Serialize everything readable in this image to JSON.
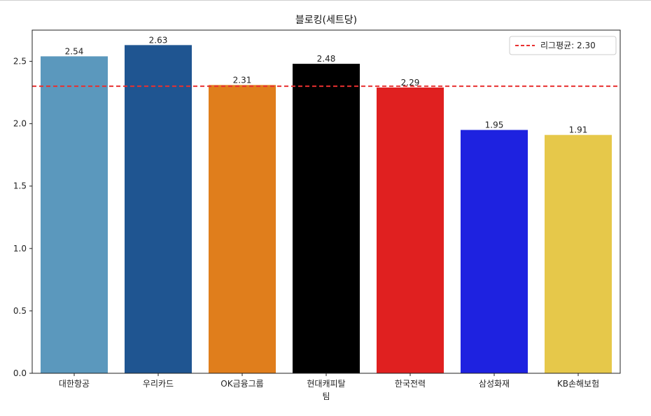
{
  "chart_data": {
    "type": "bar",
    "title": "블로킹(세트당)",
    "xlabel": "",
    "ylabel": "",
    "categories": [
      "대한항공",
      "우리카드",
      "OK금융그룹",
      "현대캐피탈\n팀",
      "한국전력",
      "삼성화재",
      "KB손해보험"
    ],
    "values": [
      2.54,
      2.63,
      2.31,
      2.48,
      2.29,
      1.95,
      1.91
    ],
    "value_labels": [
      "2.54",
      "2.63",
      "2.31",
      "2.48",
      "2.29",
      "1.95",
      "1.91"
    ],
    "colors": [
      "#5b98bd",
      "#1f5591",
      "#e07e1c",
      "#000000",
      "#e02020",
      "#1e22e0",
      "#e6c84a"
    ],
    "ylim": [
      0,
      2.75
    ],
    "yticks": [
      0.0,
      0.5,
      1.0,
      1.5,
      2.0,
      2.5
    ],
    "ytick_labels": [
      "0.0",
      "0.5",
      "1.0",
      "1.5",
      "2.0",
      "2.5"
    ],
    "reference_line": {
      "value": 2.3,
      "label": "리그평균: 2.30",
      "color": "#e83030",
      "style": "dashed"
    },
    "legend": {
      "placement": "top-right",
      "entries": [
        "리그평균: 2.30"
      ]
    },
    "grid": false
  }
}
